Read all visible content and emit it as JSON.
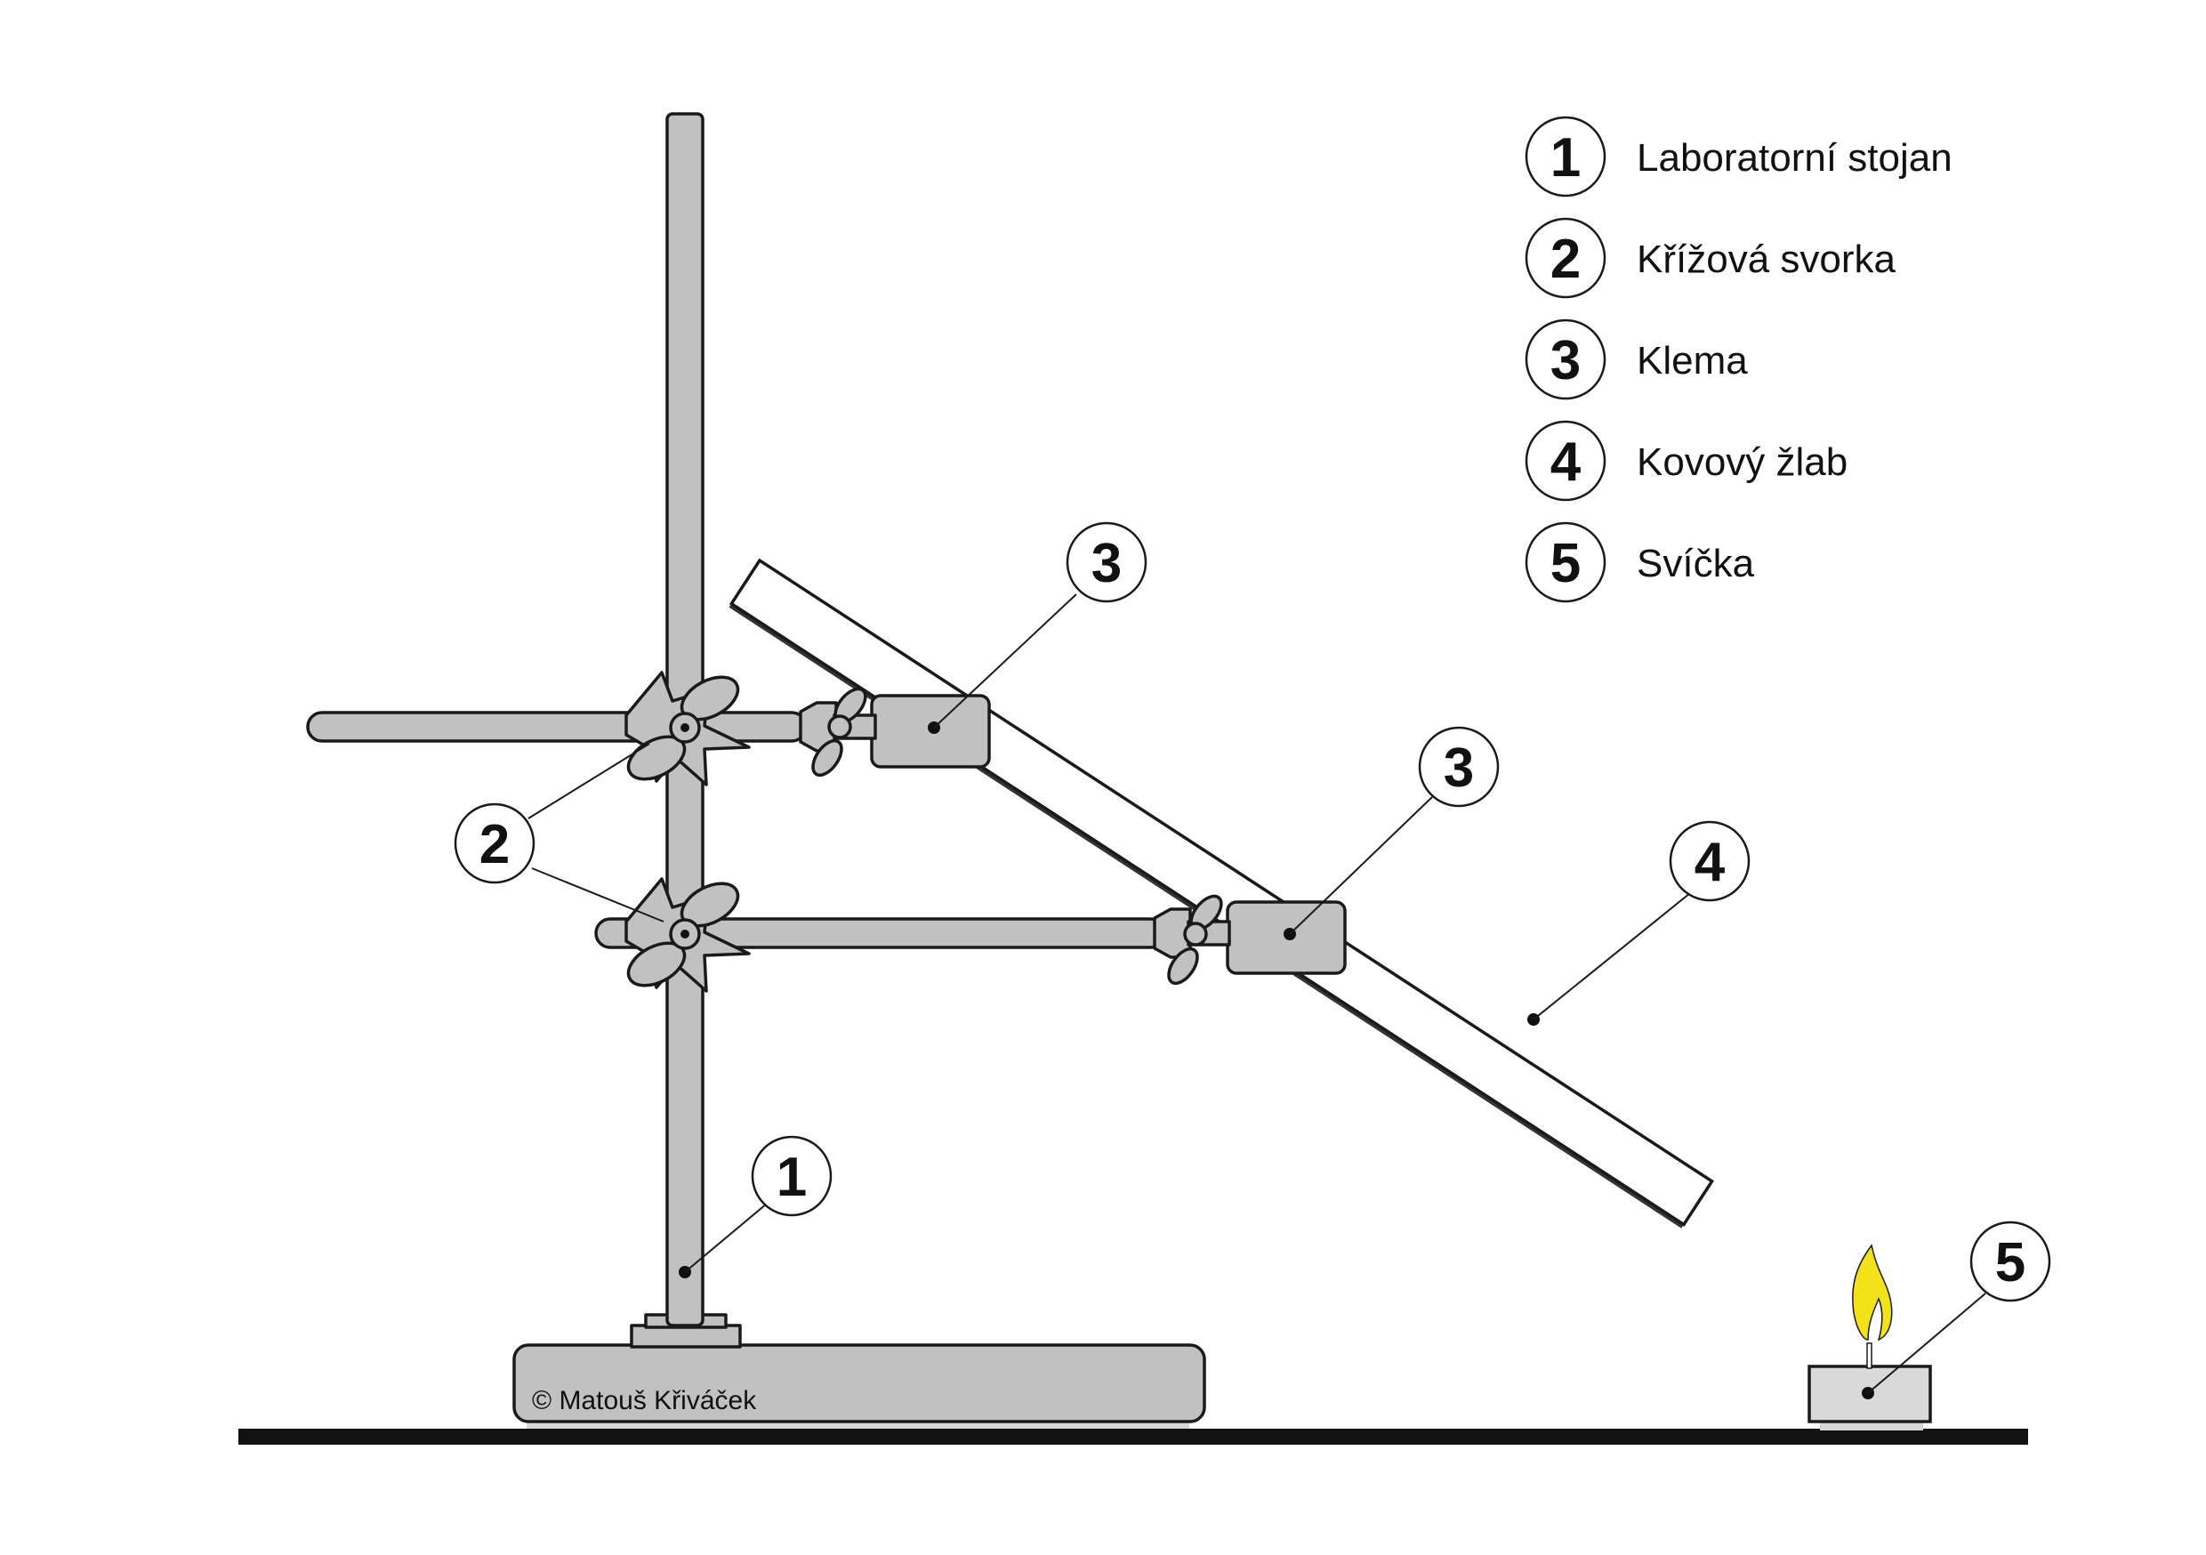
{
  "legend": [
    {
      "number": "1",
      "label": "Laboratorní stojan"
    },
    {
      "number": "2",
      "label": "Křížová svorka"
    },
    {
      "number": "3",
      "label": "Klema"
    },
    {
      "number": "4",
      "label": "Kovový žlab"
    },
    {
      "number": "5",
      "label": "Svíčka"
    }
  ],
  "callouts": {
    "stand": "1",
    "cross_clamp": "2",
    "clamp_upper": "3",
    "clamp_lower": "3",
    "trough": "4",
    "candle": "5"
  },
  "copyright": "© Matouš Křiváček",
  "colors": {
    "metal": "#c1c1c1",
    "outline": "#1a1a1a",
    "flame_outer": "#f3e21a",
    "flame_inner": "#ffffff",
    "ground": "#111111"
  }
}
